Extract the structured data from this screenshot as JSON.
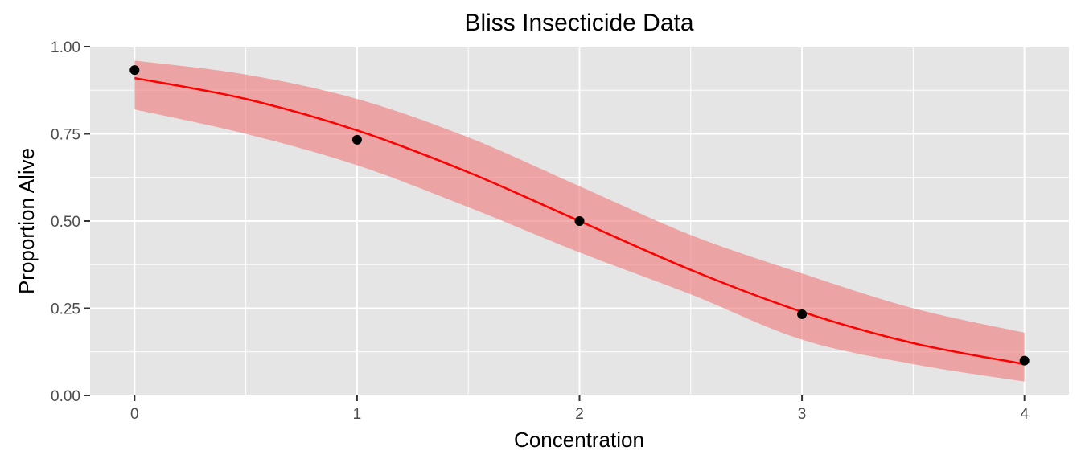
{
  "chart_data": {
    "type": "line",
    "title": "Bliss Insecticide Data",
    "xlabel": "Concentration",
    "ylabel": "Proportion Alive",
    "xlim": [
      -0.2,
      4.2
    ],
    "ylim": [
      0,
      1
    ],
    "x_ticks": [
      0,
      1,
      2,
      3,
      4
    ],
    "x_tick_labels": [
      "0",
      "1",
      "2",
      "3",
      "4"
    ],
    "y_ticks": [
      0,
      0.25,
      0.5,
      0.75,
      1
    ],
    "y_tick_labels": [
      "0.00",
      "0.25",
      "0.50",
      "0.75",
      "1.00"
    ],
    "grid": true,
    "points": {
      "x": [
        0,
        1,
        2,
        3,
        4
      ],
      "y": [
        0.933,
        0.733,
        0.5,
        0.233,
        0.1
      ]
    },
    "fit": {
      "x": [
        0,
        0.5,
        1,
        1.5,
        2,
        2.5,
        3,
        3.5,
        4
      ],
      "y": [
        0.91,
        0.85,
        0.76,
        0.64,
        0.5,
        0.36,
        0.24,
        0.15,
        0.09
      ]
    },
    "band": {
      "x": [
        0,
        0.5,
        1,
        1.5,
        2,
        2.5,
        3,
        3.5,
        4
      ],
      "lower": [
        0.82,
        0.75,
        0.66,
        0.54,
        0.41,
        0.29,
        0.16,
        0.09,
        0.04
      ],
      "upper": [
        0.96,
        0.92,
        0.85,
        0.74,
        0.6,
        0.46,
        0.35,
        0.25,
        0.18
      ]
    },
    "colors": {
      "panel": "#e5e5e5",
      "grid": "#ffffff",
      "fit_line": "#ff0000",
      "band": "#f08080",
      "points": "#000000"
    }
  }
}
